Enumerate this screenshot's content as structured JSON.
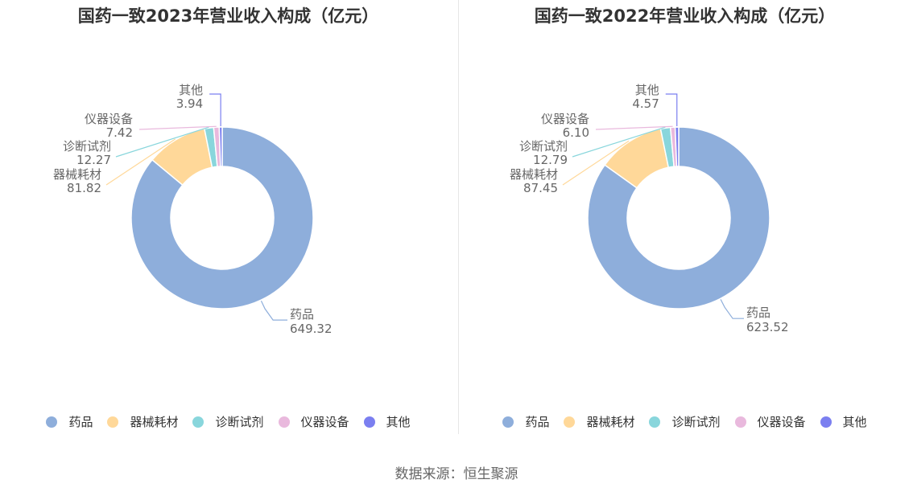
{
  "source": "数据来源：恒生聚源",
  "colors": {
    "药品": "#8eaedb",
    "器械耗材": "#ffd899",
    "诊断试剂": "#89d6dc",
    "仪器设备": "#e9b9dd",
    "其他": "#7b7ff0"
  },
  "chart_data": [
    {
      "type": "pie",
      "title": "国药一致2023年营业收入构成（亿元）",
      "categories": [
        "药品",
        "器械耗材",
        "诊断试剂",
        "仪器设备",
        "其他"
      ],
      "values": [
        649.32,
        81.82,
        12.27,
        7.42,
        3.94
      ],
      "value_labels": [
        "649.32",
        "81.82",
        "12.27",
        "7.42",
        "3.94"
      ],
      "legend": "bottom"
    },
    {
      "type": "pie",
      "title": "国药一致2022年营业收入构成（亿元）",
      "categories": [
        "药品",
        "器械耗材",
        "诊断试剂",
        "仪器设备",
        "其他"
      ],
      "values": [
        623.52,
        87.45,
        12.79,
        6.1,
        4.57
      ],
      "value_labels": [
        "623.52",
        "87.45",
        "12.79",
        "6.10",
        "4.57"
      ],
      "legend": "bottom"
    }
  ]
}
